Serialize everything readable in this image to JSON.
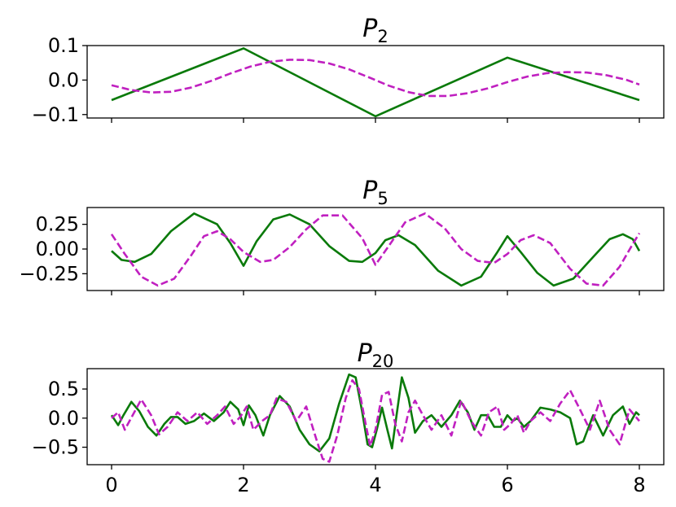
{
  "colors": {
    "solid": "#0a7a0a",
    "dashed": "#c020c0"
  },
  "chart_data": [
    {
      "type": "line",
      "title": {
        "main": "P",
        "sub": "2"
      },
      "xlim": [
        0,
        8
      ],
      "ylim": [
        -0.11,
        0.1
      ],
      "yticks": [
        0.1,
        0.0,
        -0.1
      ],
      "ytick_labels": [
        "0.1",
        "0.0",
        "−0.1"
      ],
      "xticks": [
        0,
        2,
        4,
        6,
        8
      ],
      "xtick_labels": [],
      "grid": false,
      "series": [
        {
          "style": "solid",
          "x": [
            0,
            2,
            4,
            6,
            8
          ],
          "y": [
            -0.058,
            0.092,
            -0.105,
            0.065,
            -0.058
          ]
        },
        {
          "style": "dashed",
          "x": [
            0,
            0.3,
            0.6,
            0.9,
            1.2,
            1.5,
            1.8,
            2.1,
            2.4,
            2.7,
            3.0,
            3.3,
            3.6,
            3.9,
            4.2,
            4.5,
            4.8,
            5.1,
            5.4,
            5.7,
            6.0,
            6.3,
            6.6,
            6.9,
            7.2,
            7.5,
            7.8,
            8.0
          ],
          "y": [
            -0.015,
            -0.029,
            -0.036,
            -0.034,
            -0.022,
            -0.003,
            0.019,
            0.039,
            0.053,
            0.059,
            0.058,
            0.048,
            0.031,
            0.008,
            -0.016,
            -0.035,
            -0.046,
            -0.046,
            -0.038,
            -0.024,
            -0.006,
            0.01,
            0.02,
            0.023,
            0.022,
            0.014,
            0.001,
            -0.013
          ]
        }
      ]
    },
    {
      "type": "line",
      "title": {
        "main": "P",
        "sub": "5"
      },
      "xlim": [
        0,
        8
      ],
      "ylim": [
        -0.42,
        0.42
      ],
      "yticks": [
        0.25,
        0.0,
        -0.25
      ],
      "ytick_labels": [
        "0.25",
        "0.00",
        "−0.25"
      ],
      "xticks": [
        0,
        2,
        4,
        6,
        8
      ],
      "xtick_labels": [],
      "grid": false,
      "series": [
        {
          "style": "solid",
          "x": [
            0,
            0.15,
            0.35,
            0.6,
            0.9,
            1.25,
            1.6,
            1.8,
            2.0,
            2.2,
            2.45,
            2.7,
            3.0,
            3.3,
            3.6,
            3.8,
            4.0,
            4.15,
            4.35,
            4.6,
            4.95,
            5.3,
            5.6,
            5.85,
            6.0,
            6.2,
            6.45,
            6.7,
            7.0,
            7.3,
            7.55,
            7.75,
            7.9,
            8.0
          ],
          "y": [
            -0.02,
            -0.11,
            -0.13,
            -0.05,
            0.18,
            0.36,
            0.25,
            0.06,
            -0.17,
            0.08,
            0.3,
            0.35,
            0.25,
            0.03,
            -0.12,
            -0.13,
            -0.04,
            0.09,
            0.14,
            0.04,
            -0.22,
            -0.37,
            -0.28,
            -0.03,
            0.13,
            -0.03,
            -0.24,
            -0.37,
            -0.3,
            -0.08,
            0.1,
            0.15,
            0.1,
            -0.02
          ]
        },
        {
          "style": "dashed",
          "x": [
            0,
            0.2,
            0.45,
            0.7,
            0.95,
            1.2,
            1.4,
            1.6,
            1.8,
            2.0,
            2.25,
            2.45,
            2.7,
            2.95,
            3.2,
            3.5,
            3.8,
            4.0,
            4.2,
            4.45,
            4.75,
            5.05,
            5.3,
            5.55,
            5.8,
            6.0,
            6.2,
            6.4,
            6.65,
            6.95,
            7.2,
            7.45,
            7.7,
            7.9,
            8.0
          ],
          "y": [
            0.15,
            -0.05,
            -0.28,
            -0.37,
            -0.3,
            -0.07,
            0.13,
            0.18,
            0.1,
            -0.03,
            -0.13,
            -0.11,
            0.02,
            0.2,
            0.34,
            0.34,
            0.11,
            -0.16,
            0.03,
            0.27,
            0.36,
            0.21,
            0.0,
            -0.12,
            -0.14,
            -0.05,
            0.09,
            0.14,
            0.06,
            -0.2,
            -0.35,
            -0.37,
            -0.18,
            0.05,
            0.16
          ]
        }
      ]
    },
    {
      "type": "line",
      "title": {
        "main": "P",
        "sub": "20"
      },
      "xlim": [
        0,
        8
      ],
      "ylim": [
        -0.8,
        0.85
      ],
      "yticks": [
        0.5,
        0.0,
        -0.5
      ],
      "ytick_labels": [
        "0.5",
        "0.0",
        "−0.5"
      ],
      "xticks": [
        0,
        2,
        4,
        6,
        8
      ],
      "xtick_labels": [
        "0",
        "2",
        "4",
        "6",
        "8"
      ],
      "grid": false,
      "series": [
        {
          "style": "solid",
          "x": [
            0,
            0.1,
            0.18,
            0.3,
            0.42,
            0.55,
            0.68,
            0.8,
            0.9,
            1.0,
            1.12,
            1.25,
            1.4,
            1.55,
            1.7,
            1.8,
            1.92,
            2.0,
            2.08,
            2.18,
            2.3,
            2.4,
            2.55,
            2.7,
            2.85,
            3.0,
            3.15,
            3.3,
            3.45,
            3.6,
            3.7,
            3.8,
            3.88,
            3.95,
            4.02,
            4.1,
            4.18,
            4.25,
            4.32,
            4.4,
            4.5,
            4.6,
            4.72,
            4.85,
            5.0,
            5.15,
            5.28,
            5.4,
            5.5,
            5.6,
            5.7,
            5.8,
            5.9,
            6.0,
            6.08,
            6.15,
            6.25,
            6.35,
            6.5,
            6.65,
            6.8,
            6.95,
            7.05,
            7.15,
            7.3,
            7.45,
            7.6,
            7.75,
            7.85,
            7.95,
            8.0
          ],
          "y": [
            0.05,
            -0.12,
            0.05,
            0.28,
            0.12,
            -0.15,
            -0.3,
            -0.1,
            0.02,
            0.02,
            -0.1,
            -0.05,
            0.08,
            -0.05,
            0.1,
            0.28,
            0.15,
            -0.12,
            0.22,
            0.05,
            -0.3,
            0.05,
            0.38,
            0.2,
            -0.2,
            -0.45,
            -0.57,
            -0.35,
            0.25,
            0.75,
            0.7,
            0.1,
            -0.45,
            -0.5,
            -0.2,
            0.18,
            -0.2,
            -0.52,
            0.05,
            0.7,
            0.35,
            -0.25,
            -0.05,
            0.05,
            -0.15,
            0.05,
            0.3,
            0.1,
            -0.2,
            0.05,
            0.05,
            -0.15,
            -0.15,
            0.05,
            -0.05,
            0.0,
            -0.15,
            -0.05,
            0.18,
            0.15,
            0.1,
            0.0,
            -0.45,
            -0.4,
            0.05,
            -0.3,
            0.05,
            0.2,
            -0.1,
            0.1,
            0.05
          ]
        },
        {
          "style": "dashed",
          "x": [
            0,
            0.1,
            0.2,
            0.32,
            0.45,
            0.6,
            0.72,
            0.85,
            1.0,
            1.15,
            1.3,
            1.45,
            1.6,
            1.72,
            1.85,
            1.95,
            2.05,
            2.15,
            2.28,
            2.4,
            2.5,
            2.65,
            2.8,
            2.95,
            3.1,
            3.2,
            3.3,
            3.42,
            3.55,
            3.65,
            3.75,
            3.85,
            3.92,
            4.0,
            4.1,
            4.2,
            4.3,
            4.4,
            4.5,
            4.6,
            4.72,
            4.85,
            5.0,
            5.15,
            5.3,
            5.45,
            5.6,
            5.72,
            5.85,
            5.95,
            6.05,
            6.15,
            6.25,
            6.35,
            6.5,
            6.65,
            6.8,
            6.95,
            7.1,
            7.25,
            7.4,
            7.55,
            7.7,
            7.85,
            8.0
          ],
          "y": [
            0.0,
            0.1,
            -0.2,
            0.05,
            0.32,
            0.05,
            -0.28,
            -0.15,
            0.1,
            -0.05,
            0.1,
            -0.1,
            0.05,
            0.2,
            -0.1,
            0.02,
            0.2,
            -0.2,
            -0.05,
            0.05,
            0.34,
            0.28,
            -0.05,
            0.2,
            -0.35,
            -0.7,
            -0.75,
            -0.3,
            0.35,
            0.65,
            0.5,
            -0.1,
            -0.48,
            -0.2,
            0.4,
            0.45,
            -0.1,
            -0.4,
            0.1,
            0.3,
            0.05,
            -0.2,
            0.05,
            -0.3,
            0.3,
            -0.05,
            -0.3,
            0.1,
            0.2,
            -0.2,
            -0.1,
            0.05,
            -0.25,
            -0.05,
            0.1,
            -0.05,
            0.25,
            0.48,
            0.15,
            -0.2,
            0.3,
            -0.2,
            -0.45,
            0.15,
            -0.05
          ]
        }
      ]
    }
  ]
}
